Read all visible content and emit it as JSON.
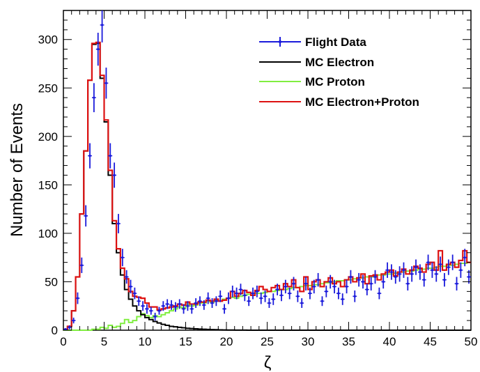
{
  "chart_data": {
    "type": "line",
    "title": "",
    "xlabel": "ζ",
    "ylabel": "Number of Events",
    "xlim": [
      0,
      50
    ],
    "ylim": [
      0,
      330
    ],
    "x_ticks": [
      0,
      5,
      10,
      15,
      20,
      25,
      30,
      35,
      40,
      45,
      50
    ],
    "y_ticks": [
      0,
      50,
      100,
      150,
      200,
      250,
      300
    ],
    "grid": false,
    "legend_position": "top-right",
    "bin_width": 0.5,
    "bin_centers": [
      0.25,
      0.75,
      1.25,
      1.75,
      2.25,
      2.75,
      3.25,
      3.75,
      4.25,
      4.75,
      5.25,
      5.75,
      6.25,
      6.75,
      7.25,
      7.75,
      8.25,
      8.75,
      9.25,
      9.75,
      10.25,
      10.75,
      11.25,
      11.75,
      12.25,
      12.75,
      13.25,
      13.75,
      14.25,
      14.75,
      15.25,
      15.75,
      16.25,
      16.75,
      17.25,
      17.75,
      18.25,
      18.75,
      19.25,
      19.75,
      20.25,
      20.75,
      21.25,
      21.75,
      22.25,
      22.75,
      23.25,
      23.75,
      24.25,
      24.75,
      25.25,
      25.75,
      26.25,
      26.75,
      27.25,
      27.75,
      28.25,
      28.75,
      29.25,
      29.75,
      30.25,
      30.75,
      31.25,
      31.75,
      32.25,
      32.75,
      33.25,
      33.75,
      34.25,
      34.75,
      35.25,
      35.75,
      36.25,
      36.75,
      37.25,
      37.75,
      38.25,
      38.75,
      39.25,
      39.75,
      40.25,
      40.75,
      41.25,
      41.75,
      42.25,
      42.75,
      43.25,
      43.75,
      44.25,
      44.75,
      45.25,
      45.75,
      46.25,
      46.75,
      47.25,
      47.75,
      48.25,
      48.75,
      49.25,
      49.75
    ],
    "series": [
      {
        "name": "Flight Data",
        "style": "points-with-errors",
        "color": "#1a1adb",
        "values": [
          1,
          3,
          10,
          33,
          67,
          118,
          180,
          240,
          290,
          315,
          255,
          180,
          160,
          110,
          75,
          55,
          45,
          38,
          30,
          25,
          22,
          20,
          14,
          20,
          25,
          27,
          26,
          24,
          27,
          22,
          25,
          22,
          28,
          30,
          26,
          33,
          28,
          30,
          35,
          22,
          33,
          40,
          38,
          42,
          36,
          30,
          38,
          40,
          33,
          35,
          28,
          32,
          42,
          36,
          45,
          38,
          48,
          35,
          28,
          48,
          38,
          45,
          52,
          30,
          40,
          50,
          45,
          38,
          32,
          45,
          55,
          35,
          52,
          50,
          42,
          48,
          55,
          38,
          50,
          62,
          60,
          55,
          58,
          62,
          48,
          58,
          65,
          60,
          52,
          70,
          62,
          58,
          68,
          52,
          65,
          70,
          48,
          62,
          75,
          55
        ],
        "errors": [
          1,
          2,
          3,
          6,
          8,
          11,
          13,
          15,
          17,
          18,
          16,
          13,
          13,
          10,
          9,
          7,
          7,
          6,
          5,
          5,
          5,
          4,
          4,
          4,
          5,
          5,
          5,
          5,
          5,
          5,
          5,
          5,
          5,
          5,
          5,
          6,
          5,
          5,
          6,
          5,
          6,
          6,
          6,
          6,
          6,
          5,
          6,
          6,
          6,
          6,
          5,
          6,
          6,
          6,
          7,
          6,
          7,
          6,
          5,
          7,
          6,
          7,
          7,
          5,
          6,
          7,
          7,
          6,
          6,
          7,
          7,
          6,
          7,
          7,
          6,
          7,
          7,
          6,
          7,
          8,
          8,
          7,
          8,
          8,
          7,
          8,
          8,
          8,
          7,
          8,
          8,
          8,
          8,
          7,
          8,
          8,
          7,
          8,
          9,
          7
        ]
      },
      {
        "name": "MC Electron",
        "style": "step",
        "color": "#000000",
        "values": [
          1,
          4,
          20,
          55,
          120,
          185,
          258,
          295,
          296,
          260,
          215,
          160,
          110,
          80,
          57,
          42,
          32,
          25,
          20,
          16,
          13,
          11,
          9,
          7.5,
          6,
          5,
          4,
          3.5,
          3,
          2.5,
          2,
          1.7,
          1.4,
          1.2,
          1,
          0.8,
          0.6,
          0.5,
          0.4,
          0.3,
          0.2,
          0.2,
          0.1,
          0.1,
          0.1,
          0,
          0,
          0,
          0,
          0,
          0,
          0,
          0,
          0,
          0,
          0,
          0,
          0,
          0,
          0,
          0,
          0,
          0,
          0,
          0,
          0,
          0,
          0,
          0,
          0,
          0,
          0,
          0,
          0,
          0,
          0,
          0,
          0,
          0,
          0,
          0,
          0,
          0,
          0,
          0,
          0,
          0,
          0,
          0,
          0,
          0,
          0,
          0,
          0,
          0,
          0,
          0,
          0,
          0,
          0
        ]
      },
      {
        "name": "MC Proton",
        "style": "step",
        "color": "#80ee40",
        "values": [
          0,
          0,
          0,
          0,
          0,
          0,
          0,
          1,
          1,
          3,
          2,
          5,
          3,
          4,
          7,
          11,
          8,
          10,
          14,
          17,
          15,
          13,
          15,
          14,
          16,
          18,
          20,
          22,
          24,
          23,
          27,
          25,
          26,
          28,
          28,
          30,
          29,
          31,
          30,
          32,
          33,
          34,
          33,
          35,
          36,
          37,
          36,
          38,
          38,
          39,
          40,
          40,
          41,
          42,
          42,
          43,
          44,
          44,
          45,
          46,
          46,
          47,
          47,
          48,
          49,
          49,
          50,
          51,
          51,
          52,
          52,
          53,
          54,
          54,
          55,
          55,
          56,
          57,
          57,
          58,
          58,
          59,
          60,
          60,
          61,
          61,
          62,
          63,
          63,
          64,
          64,
          65,
          66,
          66,
          67,
          67,
          68,
          69,
          69,
          70
        ]
      },
      {
        "name": "MC Electron+Proton",
        "style": "step",
        "color": "#dd1111",
        "values": [
          1,
          4,
          20,
          55,
          120,
          185,
          258,
          296,
          297,
          263,
          217,
          165,
          113,
          84,
          64,
          53,
          40,
          35,
          34,
          33,
          28,
          24,
          24,
          21,
          22,
          23,
          24,
          25,
          27,
          26,
          29,
          27,
          27,
          29,
          29,
          31,
          30,
          32,
          30,
          31,
          33,
          40,
          35,
          38,
          41,
          39,
          36,
          41,
          45,
          42,
          40,
          44,
          46,
          42,
          48,
          45,
          52,
          44,
          40,
          55,
          42,
          50,
          52,
          45,
          50,
          54,
          48,
          50,
          45,
          52,
          55,
          50,
          54,
          58,
          48,
          56,
          57,
          52,
          58,
          60,
          62,
          56,
          60,
          63,
          58,
          62,
          66,
          64,
          60,
          68,
          70,
          62,
          82,
          62,
          68,
          70,
          65,
          72,
          82,
          70
        ]
      }
    ]
  }
}
